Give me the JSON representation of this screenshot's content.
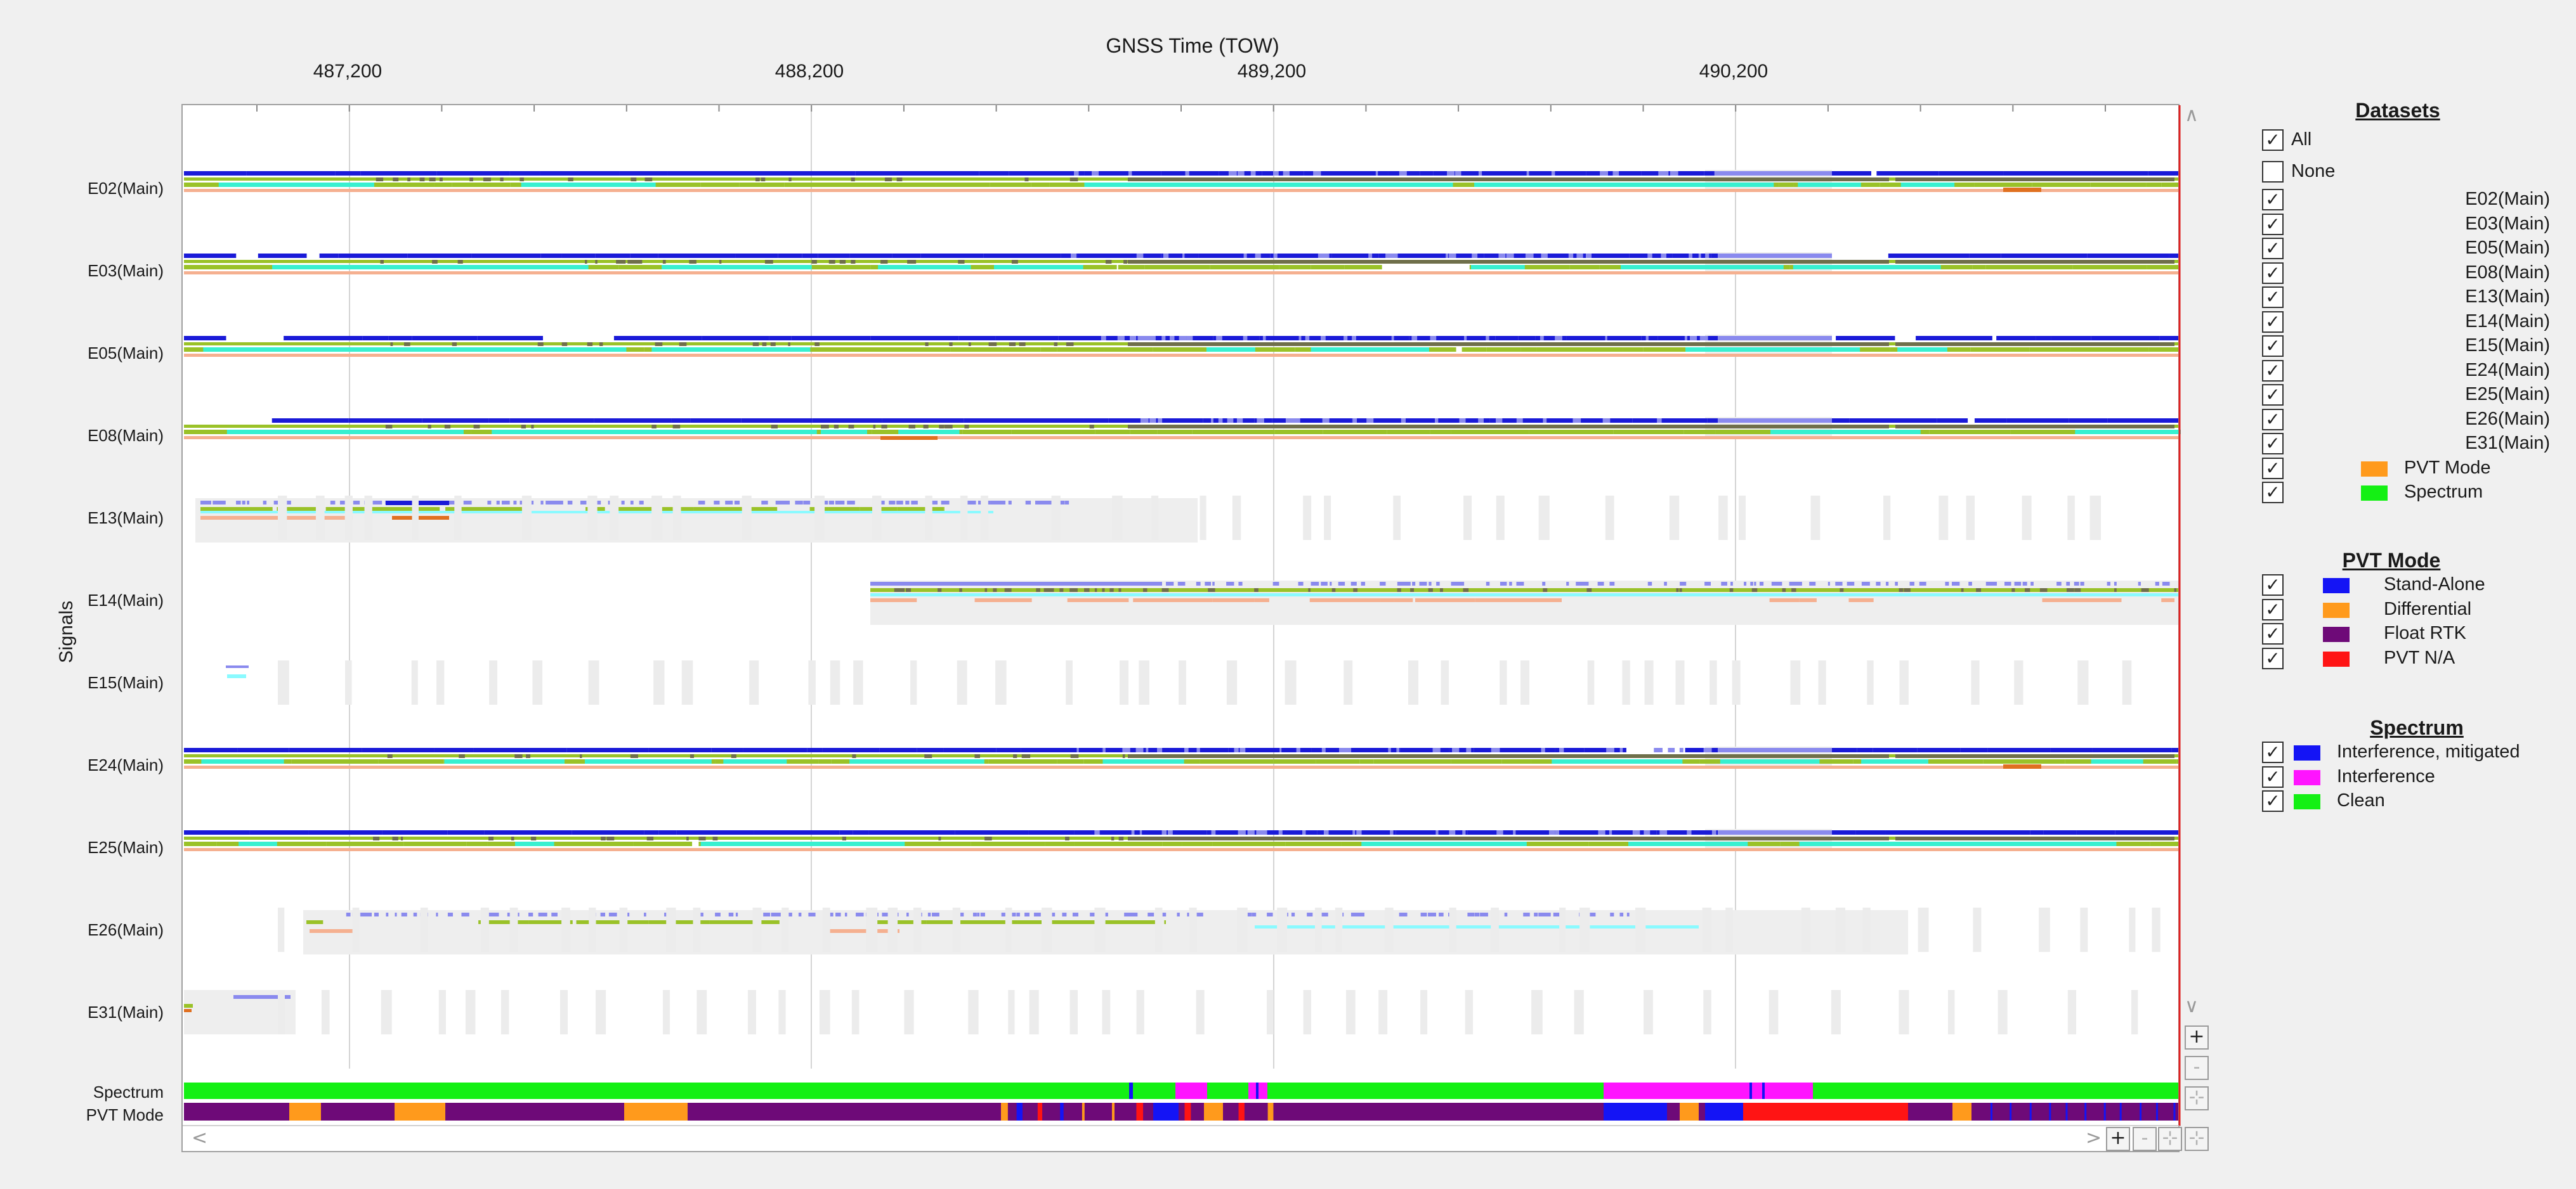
{
  "axis": {
    "title": "GNSS Time (TOW)",
    "ticks": [
      "487,200",
      "488,200",
      "489,200",
      "490,200"
    ],
    "y_title": "Signals"
  },
  "signals": [
    {
      "label": "E02(Main)"
    },
    {
      "label": "E03(Main)"
    },
    {
      "label": "E05(Main)"
    },
    {
      "label": "E08(Main)"
    },
    {
      "label": "E13(Main)"
    },
    {
      "label": "E14(Main)"
    },
    {
      "label": "E15(Main)"
    },
    {
      "label": "E24(Main)"
    },
    {
      "label": "E25(Main)"
    },
    {
      "label": "E26(Main)"
    },
    {
      "label": "E31(Main)"
    }
  ],
  "bottom_rows": {
    "spectrum": "Spectrum",
    "pvt_mode": "PVT Mode"
  },
  "controls": {
    "zoom_in": "+",
    "zoom_out": "-",
    "fit": "⊹",
    "scroll_up": "∧",
    "scroll_down": "∨",
    "scroll_left": "<",
    "scroll_right": ">"
  },
  "legend": {
    "datasets": {
      "title": "Datasets",
      "all": "All",
      "none": "None",
      "items": [
        {
          "label": "E02(Main)",
          "checked": true
        },
        {
          "label": "E03(Main)",
          "checked": true
        },
        {
          "label": "E05(Main)",
          "checked": true
        },
        {
          "label": "E08(Main)",
          "checked": true
        },
        {
          "label": "E13(Main)",
          "checked": true
        },
        {
          "label": "E14(Main)",
          "checked": true
        },
        {
          "label": "E15(Main)",
          "checked": true
        },
        {
          "label": "E24(Main)",
          "checked": true
        },
        {
          "label": "E25(Main)",
          "checked": true
        },
        {
          "label": "E26(Main)",
          "checked": true
        },
        {
          "label": "E31(Main)",
          "checked": true
        },
        {
          "label": "PVT Mode",
          "checked": true,
          "color": "#ff9a1c"
        },
        {
          "label": "Spectrum",
          "checked": true,
          "color": "#14f014"
        }
      ]
    },
    "pvt_mode": {
      "title": "PVT Mode",
      "items": [
        {
          "label": "Stand-Alone",
          "color": "#1414f5",
          "checked": true
        },
        {
          "label": "Differential",
          "color": "#ff9a1c",
          "checked": true
        },
        {
          "label": "Float RTK",
          "color": "#6e0a78",
          "checked": true
        },
        {
          "label": "PVT N/A",
          "color": "#ff1414",
          "checked": true
        }
      ]
    },
    "spectrum": {
      "title": "Spectrum",
      "items": [
        {
          "label": "Interference, mitigated",
          "color": "#1414f5",
          "checked": true
        },
        {
          "label": "Interference",
          "color": "#ff14ff",
          "checked": true
        },
        {
          "label": "Clean",
          "color": "#14f014",
          "checked": true
        }
      ]
    }
  },
  "colors": {
    "strong_blue": "#1a1ad8",
    "light_blue": "#8a8aee",
    "olive_dark": "#6f6f4a",
    "green_yellow": "#9ac228",
    "cyan": "#38f0d0",
    "light_cyan": "#8afaff",
    "salmon": "#f5b090",
    "orange_dark": "#e07020",
    "gap_gray": "#eeeeee",
    "spectrum_clean": "#14f014",
    "spectrum_interf": "#ff14ff",
    "spectrum_mitig": "#1414f5",
    "pvt_float": "#6e0a78",
    "pvt_diff": "#ff9a1c",
    "pvt_sa": "#1414f5",
    "pvt_na": "#ff1414",
    "cursor": "#e02020"
  }
}
